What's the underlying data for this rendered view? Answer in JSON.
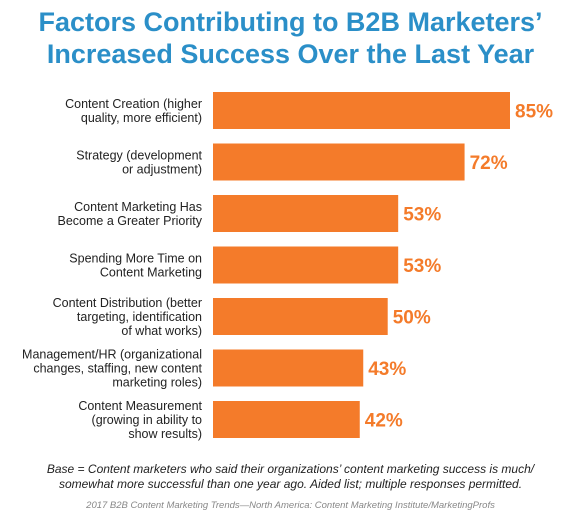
{
  "title_lines": [
    "Factors Contributing to B2B Marketers’",
    "Increased Success Over the Last Year"
  ],
  "colors": {
    "title": "#2b8fc8",
    "bar": "#f47b2a",
    "value_text": "#f47b2a"
  },
  "chart_data": {
    "type": "bar",
    "orientation": "horizontal",
    "title": "Factors Contributing to B2B Marketers’ Increased Success Over the Last Year",
    "categories": [
      [
        "Content Creation (higher",
        "quality, more efficient)"
      ],
      [
        "Strategy (development",
        "or adjustment)"
      ],
      [
        "Content Marketing Has",
        "Become a Greater Priority"
      ],
      [
        "Spending More Time on",
        "Content Marketing"
      ],
      [
        "Content Distribution (better",
        "targeting, identification",
        "of what works)"
      ],
      [
        "Management/HR (organizational",
        "changes, staffing, new content",
        "marketing roles)"
      ],
      [
        "Content Measurement",
        "(growing in ability to",
        "show results)"
      ]
    ],
    "values": [
      85,
      72,
      53,
      53,
      50,
      43,
      42
    ],
    "value_labels": [
      "85%",
      "72%",
      "53%",
      "53%",
      "50%",
      "43%",
      "42%"
    ],
    "xlim": [
      0,
      100
    ],
    "grid": false,
    "legend": "none"
  },
  "footnote_lines": [
    "Base = Content marketers who said their organizations’ content marketing success is much/",
    "somewhat more successful than one year ago. Aided list; multiple responses permitted."
  ],
  "source": "2017 B2B Content Marketing Trends—North America: Content Marketing Institute/MarketingProfs"
}
